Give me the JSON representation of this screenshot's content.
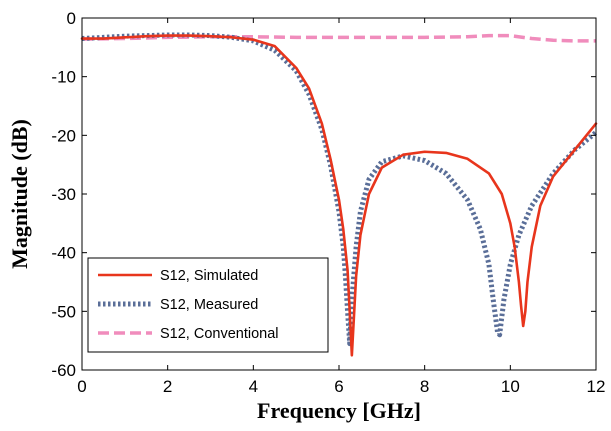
{
  "chart_data": {
    "type": "line",
    "title": "",
    "xlabel": "Frequency [GHz]",
    "ylabel": "Magnitude (dB)",
    "xlim": [
      0,
      12
    ],
    "ylim": [
      -60,
      0
    ],
    "xticks": [
      0,
      2,
      4,
      6,
      8,
      10,
      12
    ],
    "yticks": [
      0,
      -10,
      -20,
      -30,
      -40,
      -50,
      -60
    ],
    "grid": false,
    "legend_position": "bottom-left",
    "series": [
      {
        "name": "S12, Simulated",
        "color": "#e8351c",
        "style": "solid",
        "x": [
          0,
          0.5,
          1,
          1.5,
          2,
          2.5,
          3,
          3.5,
          4,
          4.5,
          5,
          5.3,
          5.6,
          5.8,
          6.0,
          6.1,
          6.2,
          6.25,
          6.3,
          6.4,
          6.5,
          6.7,
          7.0,
          7.5,
          8.0,
          8.5,
          9.0,
          9.5,
          9.8,
          10.0,
          10.1,
          10.2,
          10.25,
          10.3,
          10.35,
          10.4,
          10.5,
          10.7,
          11.0,
          11.5,
          12.0
        ],
        "y": [
          -3.5,
          -3.5,
          -3.3,
          -3.1,
          -3.0,
          -3.0,
          -3.1,
          -3.3,
          -3.7,
          -4.8,
          -8.5,
          -12.0,
          -18.0,
          -24.0,
          -31.0,
          -36.0,
          -43.0,
          -50.0,
          -57.5,
          -44.0,
          -37.0,
          -30.0,
          -25.5,
          -23.3,
          -22.8,
          -23.0,
          -24.0,
          -26.5,
          -30.0,
          -35.0,
          -39.0,
          -45.0,
          -49.0,
          -52.5,
          -50.0,
          -45.0,
          -39.0,
          -32.0,
          -27.0,
          -22.5,
          -18.0
        ]
      },
      {
        "name": "S12, Measured",
        "color": "#5a6e98",
        "style": "dotted",
        "x": [
          0,
          0.5,
          1,
          1.5,
          2,
          2.5,
          3,
          3.5,
          4,
          4.5,
          5,
          5.3,
          5.6,
          5.8,
          6.0,
          6.1,
          6.15,
          6.2,
          6.25,
          6.3,
          6.4,
          6.5,
          6.7,
          7.0,
          7.5,
          8.0,
          8.5,
          9.0,
          9.3,
          9.5,
          9.6,
          9.7,
          9.75,
          9.85,
          10.0,
          10.2,
          10.5,
          11.0,
          11.5,
          12.0
        ],
        "y": [
          -3.5,
          -3.3,
          -3.1,
          -3.0,
          -2.9,
          -2.9,
          -3.0,
          -3.3,
          -3.9,
          -5.5,
          -9.0,
          -13.0,
          -19.0,
          -25.0,
          -33.0,
          -39.0,
          -44.0,
          -50.0,
          -55.5,
          -48.0,
          -39.0,
          -33.0,
          -27.5,
          -24.5,
          -23.5,
          -24.3,
          -26.5,
          -31.0,
          -36.0,
          -42.0,
          -48.0,
          -53.5,
          -54.0,
          -48.0,
          -42.0,
          -37.0,
          -32.0,
          -26.5,
          -22.5,
          -19.5
        ]
      },
      {
        "name": "S12, Conventional",
        "color": "#f08cbc",
        "style": "dashed",
        "x": [
          0,
          1,
          2,
          3,
          4,
          5,
          6,
          7,
          8,
          9,
          9.5,
          10,
          10.5,
          11,
          11.5,
          12
        ],
        "y": [
          -3.6,
          -3.5,
          -3.3,
          -3.2,
          -3.2,
          -3.3,
          -3.3,
          -3.3,
          -3.3,
          -3.2,
          -3.0,
          -3.0,
          -3.5,
          -3.8,
          -3.9,
          -3.9
        ]
      }
    ]
  }
}
